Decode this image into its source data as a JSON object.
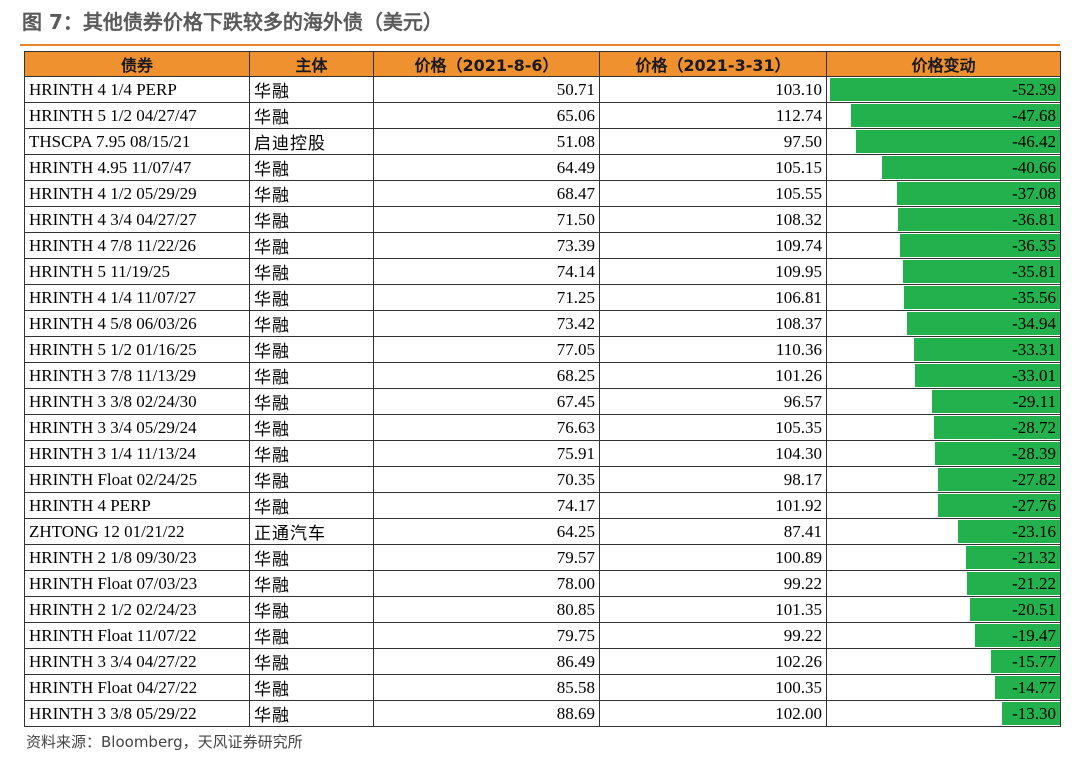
{
  "figure": {
    "title": "图 7：其他债券价格下跌较多的海外债（美元）",
    "source": "资料来源：Bloomberg，天风证券研究所"
  },
  "colors": {
    "header_bg": "#f0912f",
    "bar_green": "#22b14c",
    "title_rule": "#e8852b"
  },
  "table": {
    "headers": [
      "债券",
      "主体",
      "价格（2021-8-6）",
      "价格（2021-3-31）",
      "价格变动"
    ],
    "rows": [
      {
        "bond": "HRINTH 4 1/4 PERP",
        "issuer": "华融",
        "price_0806": "50.71",
        "price_0331": "103.10",
        "change": "-52.39"
      },
      {
        "bond": "HRINTH 5 1/2 04/27/47",
        "issuer": "华融",
        "price_0806": "65.06",
        "price_0331": "112.74",
        "change": "-47.68"
      },
      {
        "bond": "THSCPA 7.95 08/15/21",
        "issuer": "启迪控股",
        "price_0806": "51.08",
        "price_0331": "97.50",
        "change": "-46.42"
      },
      {
        "bond": "HRINTH 4.95 11/07/47",
        "issuer": "华融",
        "price_0806": "64.49",
        "price_0331": "105.15",
        "change": "-40.66"
      },
      {
        "bond": "HRINTH 4 1/2 05/29/29",
        "issuer": "华融",
        "price_0806": "68.47",
        "price_0331": "105.55",
        "change": "-37.08"
      },
      {
        "bond": "HRINTH 4 3/4 04/27/27",
        "issuer": "华融",
        "price_0806": "71.50",
        "price_0331": "108.32",
        "change": "-36.81"
      },
      {
        "bond": "HRINTH 4 7/8 11/22/26",
        "issuer": "华融",
        "price_0806": "73.39",
        "price_0331": "109.74",
        "change": "-36.35"
      },
      {
        "bond": "HRINTH 5 11/19/25",
        "issuer": "华融",
        "price_0806": "74.14",
        "price_0331": "109.95",
        "change": "-35.81"
      },
      {
        "bond": "HRINTH 4 1/4 11/07/27",
        "issuer": "华融",
        "price_0806": "71.25",
        "price_0331": "106.81",
        "change": "-35.56"
      },
      {
        "bond": "HRINTH 4 5/8 06/03/26",
        "issuer": "华融",
        "price_0806": "73.42",
        "price_0331": "108.37",
        "change": "-34.94"
      },
      {
        "bond": "HRINTH 5 1/2 01/16/25",
        "issuer": "华融",
        "price_0806": "77.05",
        "price_0331": "110.36",
        "change": "-33.31"
      },
      {
        "bond": "HRINTH 3 7/8 11/13/29",
        "issuer": "华融",
        "price_0806": "68.25",
        "price_0331": "101.26",
        "change": "-33.01"
      },
      {
        "bond": "HRINTH 3 3/8 02/24/30",
        "issuer": "华融",
        "price_0806": "67.45",
        "price_0331": "96.57",
        "change": "-29.11"
      },
      {
        "bond": "HRINTH 3 3/4 05/29/24",
        "issuer": "华融",
        "price_0806": "76.63",
        "price_0331": "105.35",
        "change": "-28.72"
      },
      {
        "bond": "HRINTH 3 1/4 11/13/24",
        "issuer": "华融",
        "price_0806": "75.91",
        "price_0331": "104.30",
        "change": "-28.39"
      },
      {
        "bond": "HRINTH Float 02/24/25",
        "issuer": "华融",
        "price_0806": "70.35",
        "price_0331": "98.17",
        "change": "-27.82"
      },
      {
        "bond": "HRINTH 4 PERP",
        "issuer": "华融",
        "price_0806": "74.17",
        "price_0331": "101.92",
        "change": "-27.76"
      },
      {
        "bond": "ZHTONG 12 01/21/22",
        "issuer": "正通汽车",
        "price_0806": "64.25",
        "price_0331": "87.41",
        "change": "-23.16"
      },
      {
        "bond": "HRINTH 2 1/8 09/30/23",
        "issuer": "华融",
        "price_0806": "79.57",
        "price_0331": "100.89",
        "change": "-21.32"
      },
      {
        "bond": "HRINTH Float 07/03/23",
        "issuer": "华融",
        "price_0806": "78.00",
        "price_0331": "99.22",
        "change": "-21.22"
      },
      {
        "bond": "HRINTH 2 1/2 02/24/23",
        "issuer": "华融",
        "price_0806": "80.85",
        "price_0331": "101.35",
        "change": "-20.51"
      },
      {
        "bond": "HRINTH Float 11/07/22",
        "issuer": "华融",
        "price_0806": "79.75",
        "price_0331": "99.22",
        "change": "-19.47"
      },
      {
        "bond": "HRINTH 3 3/4 04/27/22",
        "issuer": "华融",
        "price_0806": "86.49",
        "price_0331": "102.26",
        "change": "-15.77"
      },
      {
        "bond": "HRINTH Float 04/27/22",
        "issuer": "华融",
        "price_0806": "85.58",
        "price_0331": "100.35",
        "change": "-14.77"
      },
      {
        "bond": "HRINTH 3 3/8 05/29/22",
        "issuer": "华融",
        "price_0806": "88.69",
        "price_0331": "102.00",
        "change": "-13.30"
      }
    ]
  }
}
